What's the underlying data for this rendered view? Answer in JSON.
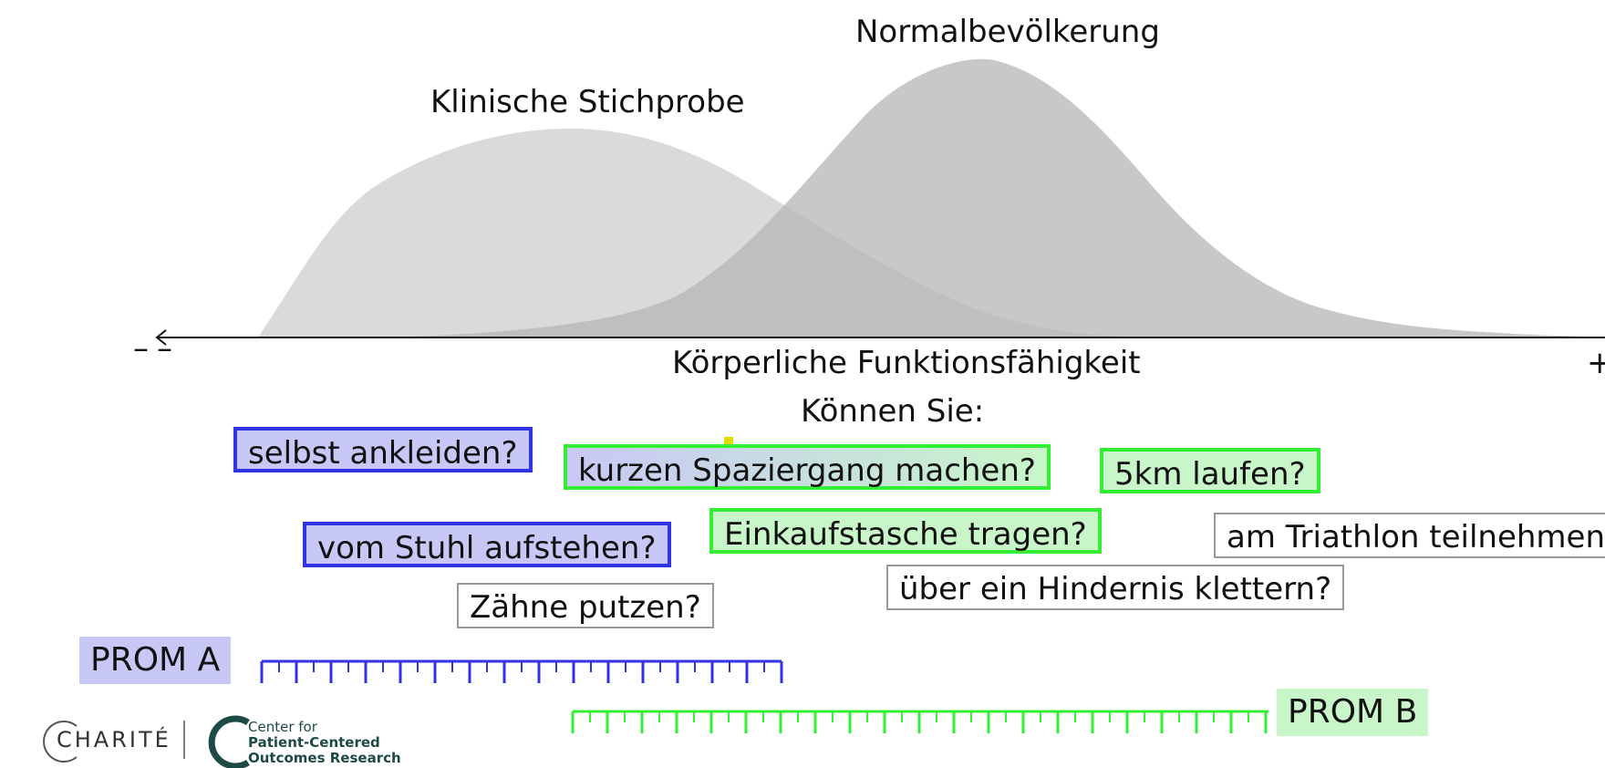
{
  "curves": {
    "clinical_label": "Klinische Stichprobe",
    "normal_label": "Normalbevölkerung"
  },
  "axis": {
    "label": "Körperliche Funktionsfähigkeit",
    "minus_symbol": "–",
    "plus_symbol": "+",
    "question_prompt": "Können Sie:"
  },
  "items": [
    {
      "text": "selbst ankleiden?",
      "style": "blue"
    },
    {
      "text": "kurzen Spaziergang machen?",
      "style": "mixed"
    },
    {
      "text": "5km laufen?",
      "style": "green"
    },
    {
      "text": "vom Stuhl aufstehen?",
      "style": "blue"
    },
    {
      "text": "Einkaufstasche tragen?",
      "style": "green"
    },
    {
      "text": "am Triathlon teilnehmen?",
      "style": "plain"
    },
    {
      "text": "über ein Hindernis klettern?",
      "style": "plain"
    },
    {
      "text": "Zähne putzen?",
      "style": "plain"
    }
  ],
  "proms": {
    "a_label": "PROM A",
    "b_label": "PROM B"
  },
  "colors": {
    "prom_a": "#3333e6",
    "prom_b": "#33ee33",
    "clinical_fill": "#d4d4d4",
    "normal_fill": "#bdbdbd"
  },
  "footer": {
    "charite": "CHARITÉ",
    "center_line1": "Center for",
    "center_line2": "Patient-Centered",
    "center_line3": "Outcomes Research"
  }
}
